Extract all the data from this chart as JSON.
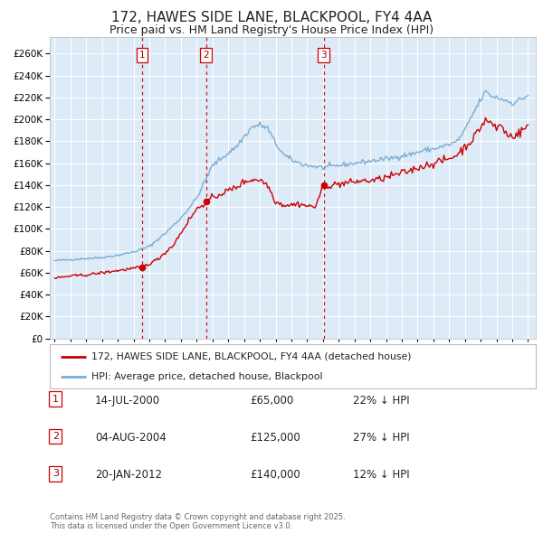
{
  "title": "172, HAWES SIDE LANE, BLACKPOOL, FY4 4AA",
  "subtitle": "Price paid vs. HM Land Registry's House Price Index (HPI)",
  "legend_red": "172, HAWES SIDE LANE, BLACKPOOL, FY4 4AA (detached house)",
  "legend_blue": "HPI: Average price, detached house, Blackpool",
  "footer": "Contains HM Land Registry data © Crown copyright and database right 2025.\nThis data is licensed under the Open Government Licence v3.0.",
  "transactions": [
    {
      "num": 1,
      "date": "14-JUL-2000",
      "price": 65000,
      "price_str": "£65,000",
      "pct": "22%",
      "x_year": 2000.54
    },
    {
      "num": 2,
      "date": "04-AUG-2004",
      "price": 125000,
      "price_str": "£125,000",
      "pct": "27%",
      "x_year": 2004.59
    },
    {
      "num": 3,
      "date": "20-JAN-2012",
      "price": 140000,
      "price_str": "£140,000",
      "pct": "12%",
      "x_year": 2012.05
    }
  ],
  "sale_points": [
    [
      2000.54,
      65000
    ],
    [
      2004.59,
      125000
    ],
    [
      2012.05,
      140000
    ]
  ],
  "yticks": [
    0,
    20000,
    40000,
    60000,
    80000,
    100000,
    120000,
    140000,
    160000,
    180000,
    200000,
    220000,
    240000,
    260000
  ],
  "ylim": [
    0,
    275000
  ],
  "xlim_start": 1994.7,
  "xlim_end": 2025.5,
  "background_color": "#ffffff",
  "plot_bg_color": "#ddeaf7",
  "grid_color": "#ffffff",
  "red_color": "#cc0000",
  "blue_color": "#7badd4",
  "dashed_color": "#cc0000",
  "title_fontsize": 11,
  "subtitle_fontsize": 9.5
}
